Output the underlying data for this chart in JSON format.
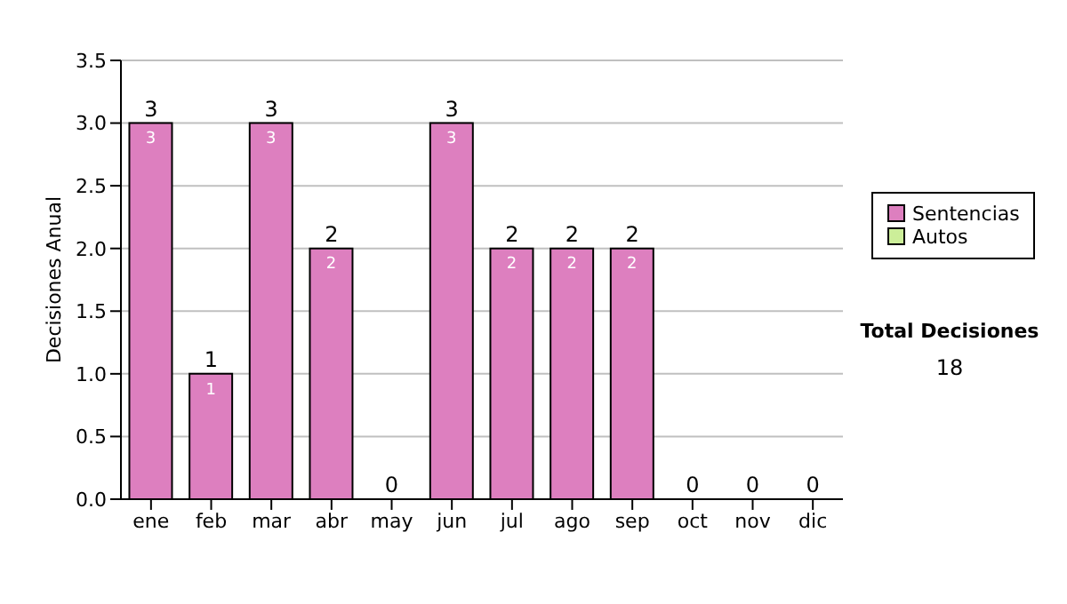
{
  "chart_data": {
    "type": "bar",
    "ylabel": "Decisiones Anual",
    "categories": [
      "ene",
      "feb",
      "mar",
      "abr",
      "may",
      "jun",
      "jul",
      "ago",
      "sep",
      "oct",
      "nov",
      "dic"
    ],
    "series": [
      {
        "name": "Sentencias",
        "color": "#dd7fbf",
        "values": [
          3,
          1,
          3,
          2,
          0,
          3,
          2,
          2,
          2,
          0,
          0,
          0
        ],
        "value_labels": [
          "3",
          "1",
          "3",
          "2",
          null,
          "3",
          "2",
          "2",
          "2",
          null,
          null,
          null
        ]
      },
      {
        "name": "Autos",
        "color": "#ccee99",
        "values": [
          0,
          0,
          0,
          0,
          0,
          0,
          0,
          0,
          0,
          0,
          0,
          0
        ]
      }
    ],
    "stacked": true,
    "totals": [
      "3",
      "1",
      "3",
      "2",
      "0",
      "3",
      "2",
      "2",
      "2",
      "0",
      "0",
      "0"
    ],
    "ylim": [
      0,
      3.5
    ],
    "yticks": [
      {
        "value": 0,
        "label": "0.0"
      },
      {
        "value": 0.5,
        "label": "0.5"
      },
      {
        "value": 1,
        "label": "1.0"
      },
      {
        "value": 1.5,
        "label": "1.5"
      },
      {
        "value": 2,
        "label": "2.0"
      },
      {
        "value": 2.5,
        "label": "2.5"
      },
      {
        "value": 3,
        "label": "3.0"
      },
      {
        "value": 3.5,
        "label": "3.5"
      }
    ],
    "grid": "y",
    "legend": "right",
    "annotations": [
      "Total Decisiones",
      "18"
    ]
  }
}
